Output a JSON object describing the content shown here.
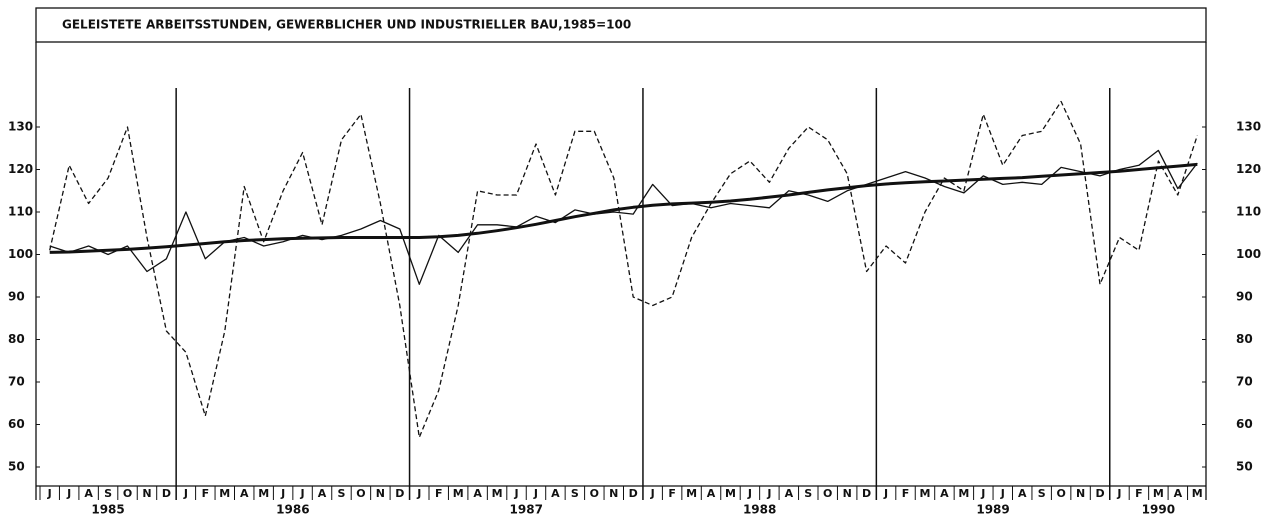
{
  "chart_data": {
    "type": "line",
    "title": "GELEISTETE ARBEITSSTUNDEN, GEWERBLICHER UND INDUSTRIELLER BAU,1985=100",
    "categories": [
      "J",
      "J",
      "A",
      "S",
      "O",
      "N",
      "D",
      "J",
      "F",
      "M",
      "A",
      "M",
      "J",
      "J",
      "A",
      "S",
      "O",
      "N",
      "D",
      "J",
      "F",
      "M",
      "A",
      "M",
      "J",
      "J",
      "A",
      "S",
      "O",
      "N",
      "D",
      "J",
      "F",
      "M",
      "A",
      "M",
      "J",
      "J",
      "A",
      "S",
      "O",
      "N",
      "D",
      "J",
      "F",
      "M",
      "A",
      "M",
      "J",
      "J",
      "A",
      "S",
      "O",
      "N",
      "D",
      "J",
      "F",
      "M",
      "A",
      "M"
    ],
    "years": [
      "1985",
      "1986",
      "1987",
      "1988",
      "1989",
      "1990"
    ],
    "ylim": [
      46,
      150
    ],
    "yticks": [
      50,
      60,
      70,
      80,
      90,
      100,
      110,
      120,
      130
    ],
    "series": [
      {
        "color": "#111",
        "style": "dashed",
        "width": 1.3,
        "values": [
          101,
          121,
          112,
          118,
          130,
          104,
          82,
          77,
          62,
          82,
          116,
          103,
          115,
          124,
          107,
          127,
          133,
          112,
          88,
          57,
          68,
          88,
          115,
          114,
          114,
          126,
          114,
          129,
          129,
          118,
          90,
          88,
          90,
          104,
          112,
          119,
          122,
          117,
          125,
          130,
          127,
          119,
          96,
          102,
          98,
          110,
          118,
          115,
          133,
          121,
          128,
          129,
          136,
          126,
          93,
          104,
          101,
          122,
          114,
          128
        ]
      },
      {
        "color": "#111",
        "style": "solid",
        "width": 1.3,
        "values": [
          102,
          100.5,
          102,
          100,
          102,
          96,
          99,
          110,
          99,
          103,
          104,
          102,
          103,
          104.5,
          103.5,
          104.5,
          106,
          108,
          106,
          93,
          104.5,
          100.5,
          107,
          107,
          106.5,
          109,
          107.5,
          110.5,
          109.5,
          110,
          109.5,
          116.5,
          111.5,
          112,
          111,
          112,
          111.5,
          111,
          115,
          114,
          112.5,
          115,
          116.5,
          118,
          119.5,
          118,
          116,
          114.5,
          118.5,
          116.5,
          117,
          116.5,
          120.5,
          119.5,
          118.5,
          120,
          121,
          124.5,
          115.5,
          121.5
        ]
      },
      {
        "color": "#111",
        "style": "solid",
        "width": 3,
        "values": [
          100.5,
          100.6,
          100.8,
          101,
          101.2,
          101.5,
          101.8,
          102.2,
          102.6,
          103,
          103.3,
          103.5,
          103.7,
          103.8,
          103.9,
          104,
          104,
          104,
          104,
          104,
          104.2,
          104.5,
          105,
          105.6,
          106.3,
          107.1,
          108,
          108.9,
          109.7,
          110.5,
          111.1,
          111.6,
          111.9,
          112.1,
          112.3,
          112.6,
          113,
          113.5,
          114,
          114.6,
          115.2,
          115.7,
          116.2,
          116.6,
          116.9,
          117.1,
          117.3,
          117.5,
          117.7,
          117.9,
          118.1,
          118.4,
          118.7,
          119,
          119.3,
          119.6,
          120,
          120.4,
          120.8,
          121.2
        ]
      }
    ]
  }
}
